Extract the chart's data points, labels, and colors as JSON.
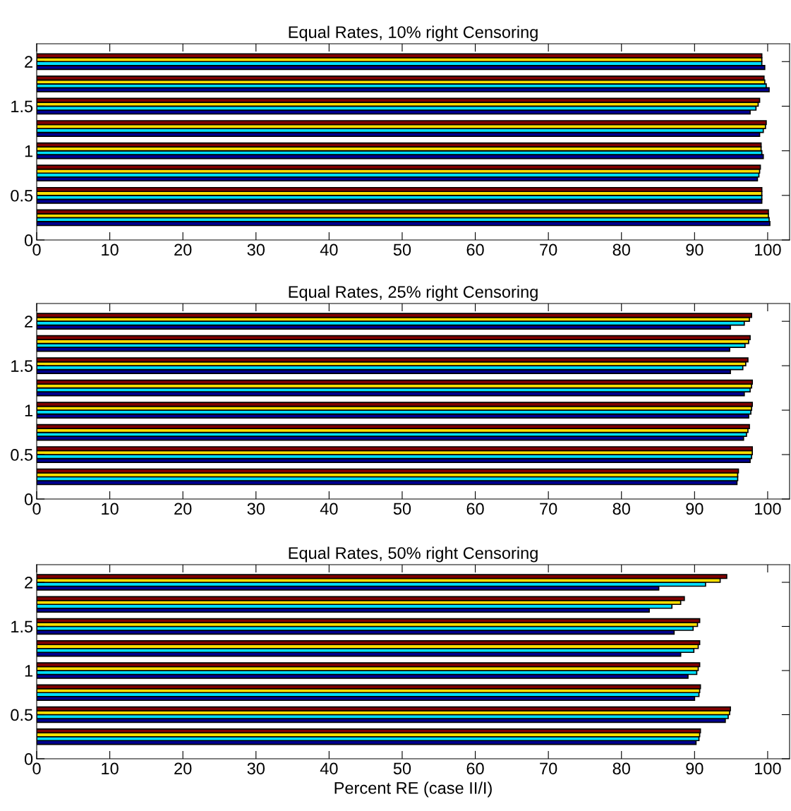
{
  "chart_data": [
    {
      "type": "bar",
      "orientation": "horizontal",
      "title": "Equal Rates, 10% right Censoring",
      "x": [
        0.25,
        0.5,
        0.75,
        1.0,
        1.25,
        1.5,
        1.75,
        2.0
      ],
      "series": [
        {
          "color": "#000090",
          "values": [
            100.3,
            99.2,
            98.6,
            99.4,
            98.9,
            97.6,
            100.2,
            99.6
          ]
        },
        {
          "color": "#00dfff",
          "values": [
            100.2,
            99.2,
            98.8,
            99.2,
            99.4,
            98.4,
            99.8,
            99.2
          ]
        },
        {
          "color": "#ffdf00",
          "values": [
            100.1,
            99.2,
            98.9,
            99.1,
            99.7,
            98.7,
            99.6,
            99.2
          ]
        },
        {
          "color": "#800000",
          "values": [
            100.1,
            99.2,
            99.0,
            99.1,
            99.8,
            98.9,
            99.5,
            99.2
          ]
        }
      ],
      "xlim": [
        0,
        103
      ],
      "xticks": [
        0,
        10,
        20,
        30,
        40,
        50,
        60,
        70,
        80,
        90,
        100
      ],
      "ylim": [
        0,
        2.2
      ],
      "yticks": [
        0,
        0.5,
        1,
        1.5,
        2
      ],
      "grid": false,
      "legend": false
    },
    {
      "type": "bar",
      "orientation": "horizontal",
      "title": "Equal Rates, 25% right Censoring",
      "x": [
        0.25,
        0.5,
        0.75,
        1.0,
        1.25,
        1.5,
        1.75,
        2.0
      ],
      "series": [
        {
          "color": "#000090",
          "values": [
            95.8,
            97.6,
            96.7,
            97.4,
            96.8,
            94.9,
            94.8,
            94.9
          ]
        },
        {
          "color": "#00dfff",
          "values": [
            95.9,
            97.8,
            97.1,
            97.7,
            97.6,
            96.6,
            96.9,
            96.8
          ]
        },
        {
          "color": "#ffdf00",
          "values": [
            95.9,
            97.9,
            97.3,
            97.8,
            97.8,
            97.0,
            97.4,
            97.5
          ]
        },
        {
          "color": "#800000",
          "values": [
            96.0,
            97.9,
            97.5,
            97.9,
            97.9,
            97.3,
            97.6,
            97.8
          ]
        }
      ],
      "xlim": [
        0,
        103
      ],
      "xticks": [
        0,
        10,
        20,
        30,
        40,
        50,
        60,
        70,
        80,
        90,
        100
      ],
      "ylim": [
        0,
        2.2
      ],
      "yticks": [
        0,
        0.5,
        1,
        1.5,
        2
      ],
      "grid": false,
      "legend": false
    },
    {
      "type": "bar",
      "orientation": "horizontal",
      "title": "Equal Rates, 50% right Censoring",
      "xlabel": "Percent RE (case II/I)",
      "x": [
        0.25,
        0.5,
        0.75,
        1.0,
        1.25,
        1.5,
        1.75,
        2.0
      ],
      "series": [
        {
          "color": "#000090",
          "values": [
            90.2,
            94.2,
            90.0,
            89.1,
            88.1,
            87.2,
            83.8,
            85.1
          ]
        },
        {
          "color": "#00dfff",
          "values": [
            90.6,
            94.6,
            90.6,
            90.3,
            89.9,
            89.8,
            86.9,
            91.5
          ]
        },
        {
          "color": "#ffdf00",
          "values": [
            90.7,
            94.8,
            90.7,
            90.5,
            90.5,
            90.4,
            88.1,
            93.5
          ]
        },
        {
          "color": "#800000",
          "values": [
            90.8,
            94.9,
            90.8,
            90.7,
            90.7,
            90.7,
            88.6,
            94.4
          ]
        }
      ],
      "xlim": [
        0,
        103
      ],
      "xticks": [
        0,
        10,
        20,
        30,
        40,
        50,
        60,
        70,
        80,
        90,
        100
      ],
      "ylim": [
        0,
        2.2
      ],
      "yticks": [
        0,
        0.5,
        1,
        1.5,
        2
      ],
      "grid": false,
      "legend": false
    }
  ]
}
